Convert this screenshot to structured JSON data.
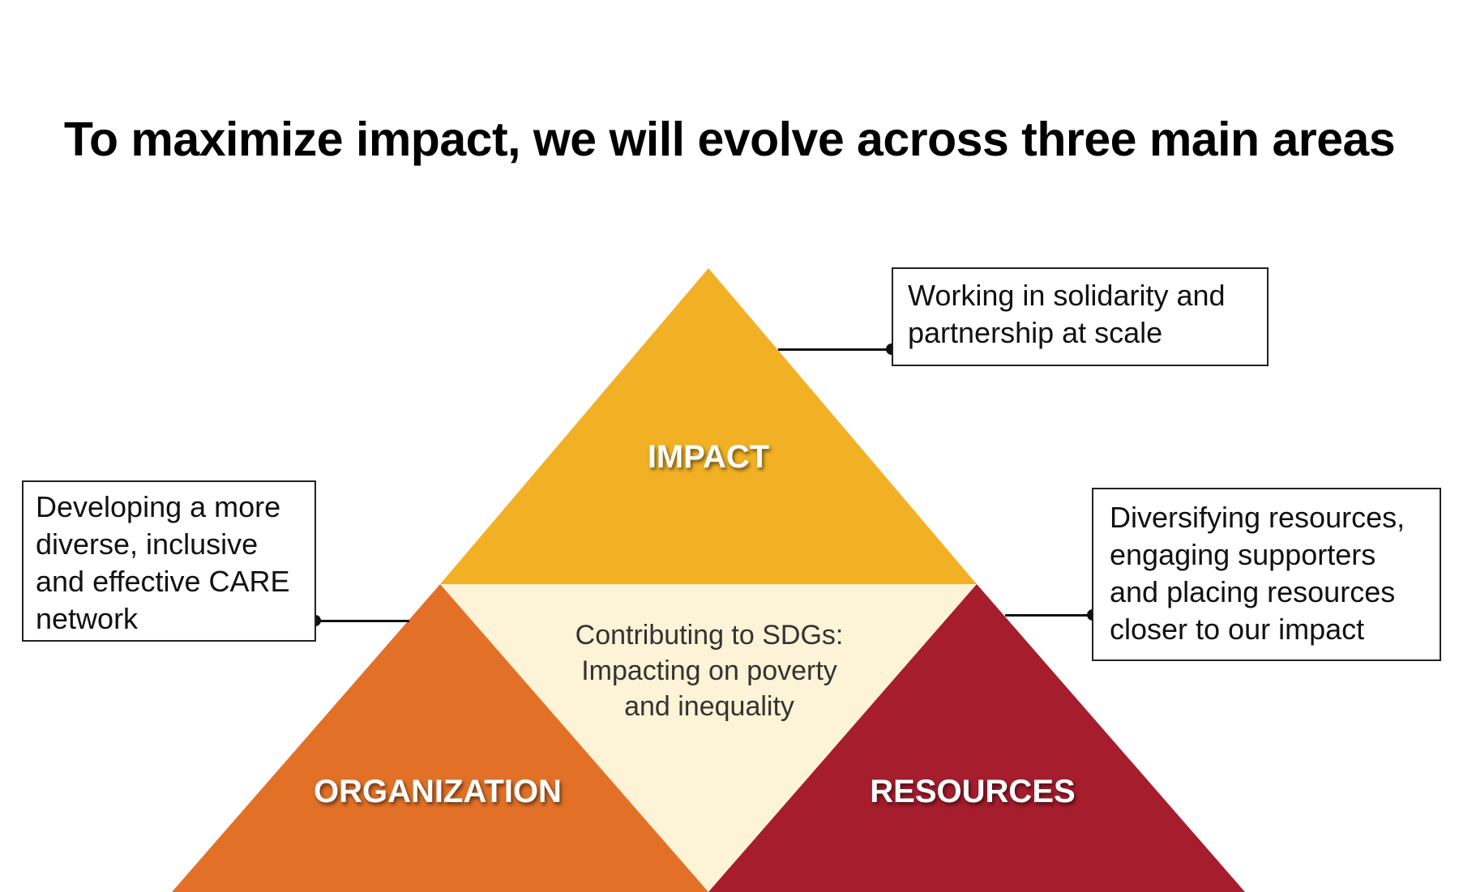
{
  "title": "To maximize impact, we will evolve across three main areas",
  "colors": {
    "impact": "#F2B124",
    "organization": "#E27127",
    "resources": "#A61D2D",
    "center": "#FDF3D6"
  },
  "pyramid": {
    "impact_label": "IMPACT",
    "organization_label": "ORGANIZATION",
    "resources_label": "RESOURCES",
    "center_lines": [
      "Contributing to SDGs:",
      "Impacting on poverty",
      "and inequality"
    ]
  },
  "callouts": {
    "impact": [
      "Working in solidarity and",
      "partnership at scale"
    ],
    "organization": [
      "Developing a more",
      "diverse, inclusive",
      "and effective CARE",
      "network"
    ],
    "resources": [
      "Diversifying resources,",
      "engaging supporters",
      "and placing resources",
      "closer to our impact"
    ]
  }
}
